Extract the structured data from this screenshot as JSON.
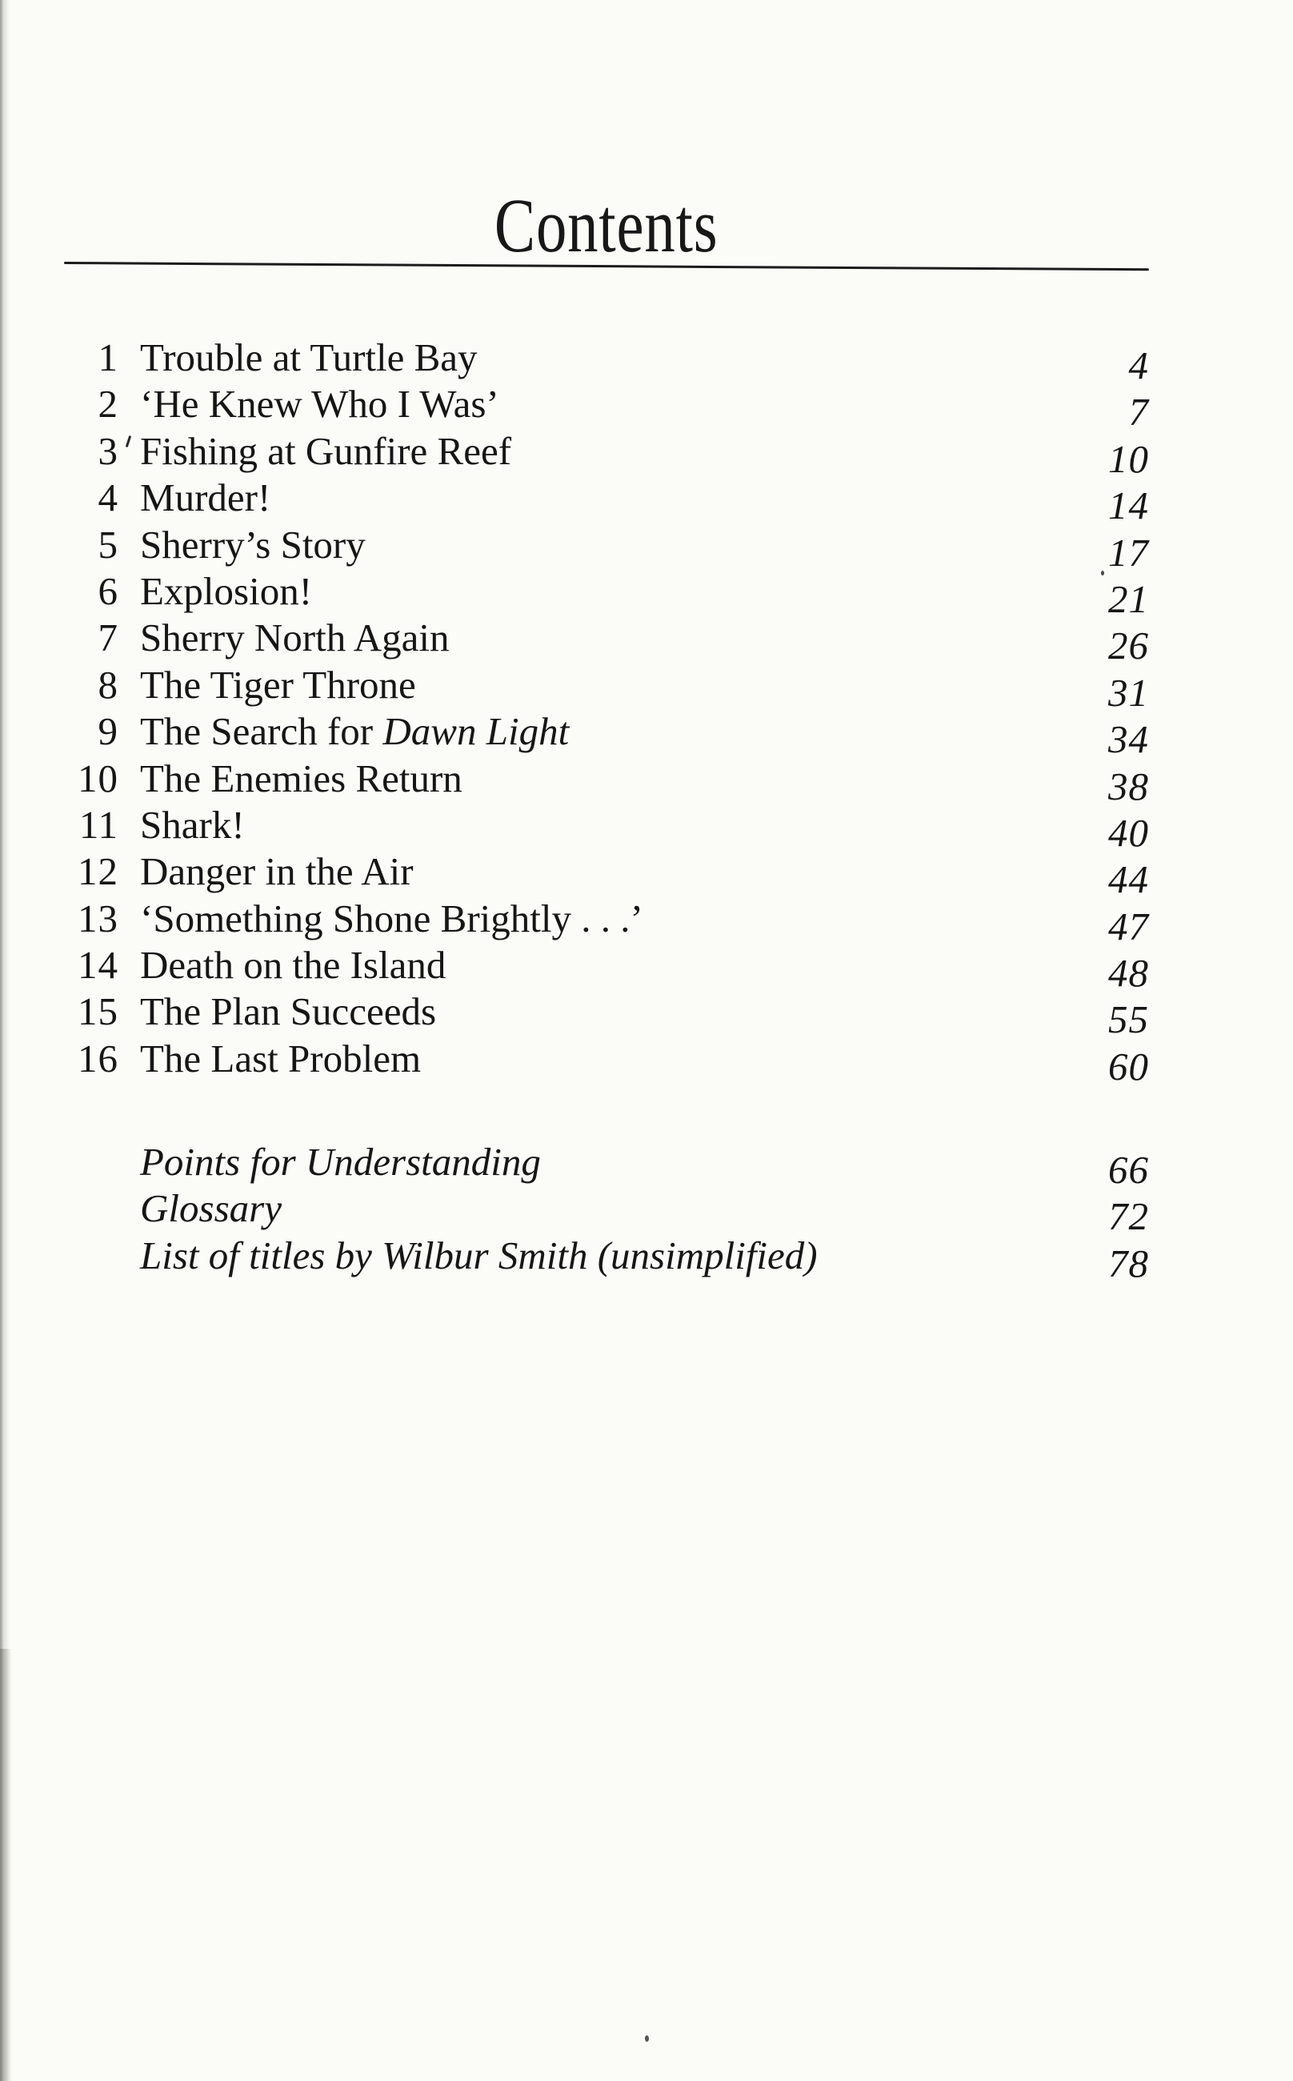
{
  "document": {
    "title": "Contents",
    "toc": [
      {
        "num": "1",
        "title": "Trouble at Turtle Bay",
        "page": "4"
      },
      {
        "num": "2",
        "title": "‘He Knew Who I Was’",
        "page": "7"
      },
      {
        "num": "3",
        "title": "Fishing at Gunfire Reef",
        "page": "10"
      },
      {
        "num": "4",
        "title": "Murder!",
        "page": "14"
      },
      {
        "num": "5",
        "title": "Sherry’s Story",
        "page": "17"
      },
      {
        "num": "6",
        "title": "Explosion!",
        "page": "21"
      },
      {
        "num": "7",
        "title": "Sherry North Again",
        "page": "26"
      },
      {
        "num": "8",
        "title": "The Tiger Throne",
        "page": "31"
      },
      {
        "num": "9",
        "title": "The Search for ",
        "italic": "Dawn Light",
        "page": "34"
      },
      {
        "num": "10",
        "title": "The Enemies Return",
        "page": "38"
      },
      {
        "num": "11",
        "title": "Shark!",
        "page": "40"
      },
      {
        "num": "12",
        "title": "Danger in the Air",
        "page": "44"
      },
      {
        "num": "13",
        "title": "‘Something Shone Brightly . . .’",
        "page": "47"
      },
      {
        "num": "14",
        "title": "Death on the Island",
        "page": "48"
      },
      {
        "num": "15",
        "title": "The Plan Succeeds",
        "page": "55"
      },
      {
        "num": "16",
        "title": "The Last Problem",
        "page": "60"
      }
    ],
    "back_matter": [
      {
        "title": "Points for Understanding",
        "page": "66"
      },
      {
        "title": "Glossary",
        "page": "72"
      },
      {
        "title": "List of titles by Wilbur Smith (unsimplified)",
        "page": "78"
      }
    ]
  }
}
